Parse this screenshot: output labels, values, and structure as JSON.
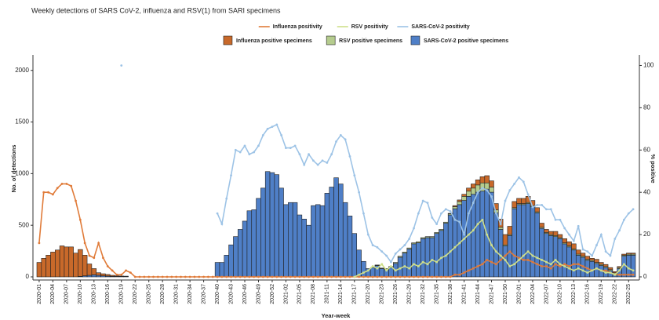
{
  "chart_data": {
    "type": "bar",
    "stacked": true,
    "title": "Weekly detections of SARS CoV-2, influenza and RSV(1) from SARI specimens",
    "x_label": "Year-week",
    "y_label": "No. of detections",
    "y2_label": "% positive",
    "ylim": [
      0,
      2150
    ],
    "yticks": [
      0,
      500,
      1000,
      1500,
      2000
    ],
    "y2lim": [
      0,
      105
    ],
    "y2ticks": [
      0,
      20,
      40,
      60,
      80,
      100
    ],
    "categories": [
      "2020-01",
      null,
      null,
      "2020-04",
      null,
      null,
      "2020-07",
      null,
      null,
      "2020-10",
      null,
      null,
      "2020-13",
      null,
      null,
      "2020-16",
      null,
      null,
      "2020-19",
      null,
      null,
      "2020-22",
      null,
      null,
      "2020-25",
      null,
      null,
      "2020-28",
      null,
      null,
      "2020-31",
      null,
      null,
      "2020-34",
      null,
      null,
      "2020-37",
      null,
      null,
      "2020-40",
      null,
      null,
      "2020-43",
      null,
      null,
      "2020-46",
      null,
      null,
      "2020-49",
      null,
      null,
      "2020-52",
      null,
      null,
      "2021-02",
      null,
      null,
      "2021-05",
      null,
      null,
      "2021-08",
      null,
      null,
      "2021-11",
      null,
      null,
      "2021-14",
      null,
      null,
      "2021-17",
      null,
      null,
      "2021-20",
      null,
      null,
      "2021-23",
      null,
      null,
      "2021-26",
      null,
      null,
      "2021-29",
      null,
      null,
      "2021-32",
      null,
      null,
      "2021-35",
      null,
      null,
      "2021-38",
      null,
      null,
      "2021-41",
      null,
      null,
      "2021-44",
      null,
      null,
      "2021-47",
      null,
      null,
      "2021-50",
      null,
      null,
      "2022-01",
      null,
      null,
      "2022-04",
      null,
      null,
      "2022-07",
      null,
      null,
      "2022-10",
      null,
      null,
      "2022-13",
      null,
      null,
      "2022-16",
      null,
      null,
      "2022-19",
      null,
      null,
      "2022-22",
      null,
      null,
      "2022-25",
      null
    ],
    "series": [
      {
        "name": "Influenza positivity",
        "type": "line",
        "axis": "y2",
        "color": "#e07b39",
        "values": [
          16,
          40,
          40,
          39,
          42,
          44,
          44,
          43,
          36,
          27,
          16,
          10,
          9,
          16,
          9,
          5,
          3,
          1,
          1,
          3,
          2,
          0,
          0,
          0,
          0,
          0,
          0,
          0,
          0,
          0,
          0,
          0,
          0,
          0,
          0,
          0,
          0,
          0,
          0,
          0,
          0,
          0,
          0,
          0,
          0,
          0,
          0,
          0,
          0,
          0,
          0,
          0,
          0,
          0,
          0,
          0,
          0,
          0,
          0,
          0,
          0,
          0,
          0,
          0,
          0,
          0,
          0,
          0,
          0,
          0,
          0,
          0,
          0,
          0,
          0,
          0,
          0,
          0,
          0,
          0,
          0,
          0,
          0,
          0,
          0,
          0,
          0,
          0,
          0,
          0,
          0,
          1,
          1,
          2,
          3,
          4,
          5,
          6,
          8,
          7,
          6,
          8,
          10,
          12,
          10,
          9,
          8,
          8,
          7,
          6,
          5,
          5,
          4,
          6,
          5,
          6,
          5,
          6,
          6,
          5,
          4,
          3,
          4,
          3,
          3,
          2,
          1,
          1,
          1,
          1,
          1
        ]
      },
      {
        "name": "RSV positivity",
        "type": "line",
        "axis": "y2",
        "color": "#cfdf8a",
        "values": [
          null,
          null,
          null,
          null,
          null,
          null,
          null,
          null,
          null,
          null,
          null,
          null,
          null,
          null,
          null,
          null,
          null,
          null,
          null,
          null,
          null,
          null,
          null,
          null,
          null,
          null,
          null,
          null,
          null,
          null,
          null,
          null,
          null,
          null,
          null,
          null,
          null,
          null,
          null,
          null,
          null,
          null,
          null,
          null,
          null,
          null,
          null,
          null,
          null,
          null,
          null,
          null,
          null,
          null,
          null,
          null,
          null,
          null,
          null,
          null,
          null,
          null,
          null,
          null,
          null,
          null,
          null,
          null,
          null,
          0,
          1,
          2,
          3,
          5,
          4,
          6,
          3,
          5,
          3,
          4,
          5,
          4,
          6,
          5,
          7,
          6,
          8,
          7,
          9,
          10,
          12,
          14,
          16,
          18,
          20,
          22,
          25,
          27,
          20,
          15,
          12,
          10,
          8,
          5,
          6,
          8,
          10,
          12,
          10,
          9,
          8,
          7,
          6,
          8,
          6,
          5,
          4,
          3,
          4,
          3,
          2,
          3,
          4,
          3,
          2,
          2,
          1,
          3,
          6,
          4,
          3
        ]
      },
      {
        "name": "SARS-CoV-2 positivity",
        "type": "line",
        "axis": "y2",
        "color": "#9dc3e6",
        "values": [
          null,
          null,
          null,
          null,
          null,
          null,
          null,
          null,
          null,
          null,
          null,
          null,
          null,
          null,
          null,
          null,
          null,
          null,
          100,
          null,
          null,
          null,
          null,
          null,
          null,
          null,
          null,
          null,
          null,
          null,
          null,
          null,
          null,
          null,
          null,
          null,
          null,
          null,
          null,
          30,
          25,
          37,
          48,
          60,
          59,
          62,
          58,
          59,
          62,
          67,
          70,
          71,
          72,
          67,
          61,
          61,
          62,
          58,
          53,
          58,
          55,
          53,
          55,
          54,
          58,
          64,
          67,
          65,
          57,
          48,
          40,
          30,
          20,
          15,
          14,
          12,
          10,
          7,
          11,
          13,
          15,
          18,
          23,
          30,
          36,
          35,
          28,
          25,
          30,
          32,
          31,
          27,
          26,
          20,
          30,
          35,
          40,
          42,
          41,
          38,
          30,
          25,
          36,
          41,
          44,
          47,
          45,
          39,
          33,
          34,
          34,
          32,
          32,
          27,
          27,
          23,
          20,
          17,
          24,
          13,
          12,
          10,
          15,
          20,
          12,
          10,
          18,
          22,
          27,
          30,
          32
        ]
      },
      {
        "name": "Influenza positive specimens",
        "type": "bar",
        "color": "#c8692a",
        "values": [
          140,
          180,
          210,
          240,
          260,
          300,
          290,
          290,
          230,
          260,
          200,
          110,
          60,
          25,
          20,
          15,
          10,
          5,
          3,
          2,
          0,
          0,
          0,
          0,
          0,
          0,
          0,
          0,
          0,
          0,
          0,
          0,
          0,
          0,
          0,
          0,
          0,
          0,
          0,
          0,
          0,
          0,
          0,
          0,
          0,
          0,
          0,
          0,
          0,
          0,
          0,
          0,
          0,
          0,
          0,
          0,
          0,
          0,
          0,
          0,
          0,
          0,
          0,
          0,
          0,
          0,
          0,
          0,
          0,
          0,
          0,
          0,
          0,
          0,
          0,
          0,
          0,
          0,
          0,
          0,
          0,
          0,
          0,
          0,
          0,
          0,
          0,
          0,
          0,
          0,
          5,
          10,
          15,
          20,
          30,
          40,
          50,
          60,
          70,
          60,
          60,
          80,
          100,
          80,
          60,
          50,
          50,
          60,
          50,
          40,
          40,
          30,
          30,
          40,
          30,
          40,
          40,
          50,
          40,
          30,
          30,
          20,
          30,
          20,
          20,
          20,
          10,
          10,
          10,
          10,
          10
        ]
      },
      {
        "name": "RSV positive specimens",
        "type": "bar",
        "color": "#b5cc8e",
        "values": [
          0,
          0,
          0,
          0,
          0,
          0,
          0,
          0,
          0,
          0,
          0,
          0,
          0,
          0,
          0,
          0,
          0,
          0,
          0,
          0,
          0,
          0,
          0,
          0,
          0,
          0,
          0,
          0,
          0,
          0,
          0,
          0,
          0,
          0,
          0,
          0,
          0,
          0,
          0,
          0,
          0,
          0,
          0,
          0,
          0,
          0,
          0,
          0,
          0,
          0,
          0,
          0,
          0,
          0,
          0,
          0,
          0,
          0,
          0,
          0,
          0,
          0,
          0,
          0,
          0,
          0,
          0,
          0,
          0,
          0,
          0,
          0,
          0,
          0,
          5,
          5,
          10,
          10,
          10,
          10,
          10,
          10,
          10,
          10,
          10,
          10,
          10,
          10,
          10,
          10,
          10,
          20,
          30,
          40,
          50,
          60,
          70,
          80,
          60,
          50,
          30,
          20,
          10,
          10,
          10,
          10,
          10,
          10,
          10,
          10,
          10,
          10,
          10,
          10,
          10,
          10,
          10,
          10,
          10,
          10,
          10,
          10,
          10,
          10,
          10,
          10,
          10,
          10,
          10,
          10,
          10
        ]
      },
      {
        "name": "SARS-CoV-2 positive specimens",
        "type": "bar",
        "color": "#4f7fc7",
        "values": [
          0,
          0,
          0,
          0,
          0,
          0,
          0,
          0,
          0,
          5,
          10,
          15,
          20,
          15,
          10,
          8,
          5,
          5,
          5,
          5,
          0,
          0,
          0,
          0,
          0,
          0,
          0,
          0,
          0,
          0,
          0,
          0,
          0,
          0,
          0,
          0,
          0,
          0,
          0,
          140,
          140,
          210,
          310,
          390,
          460,
          540,
          640,
          650,
          760,
          860,
          1020,
          1010,
          990,
          860,
          700,
          720,
          720,
          600,
          560,
          500,
          690,
          700,
          690,
          810,
          870,
          960,
          900,
          720,
          590,
          420,
          260,
          150,
          80,
          90,
          110,
          80,
          70,
          90,
          130,
          190,
          230,
          270,
          320,
          330,
          370,
          380,
          380,
          420,
          450,
          520,
          600,
          660,
          700,
          740,
          780,
          800,
          820,
          830,
          850,
          820,
          620,
          460,
          300,
          400,
          660,
          700,
          700,
          710,
          680,
          620,
          470,
          420,
          400,
          390,
          370,
          320,
          290,
          260,
          210,
          190,
          160,
          150,
          130,
          110,
          90,
          60,
          30,
          80,
          200,
          210,
          210
        ]
      }
    ]
  }
}
